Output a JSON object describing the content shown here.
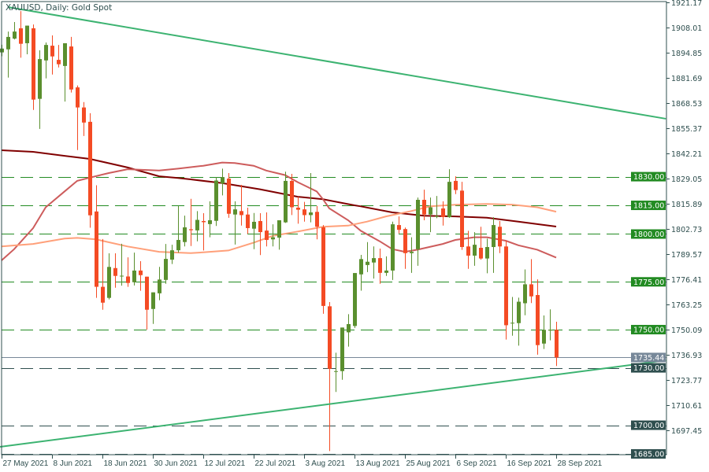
{
  "title": "XAUUSD, Daily:  Gold Spot",
  "colors": {
    "bull": "#5a8f2e",
    "bear": "#f44b24",
    "frame": "#2f4f4f",
    "trendline": "#3cb371",
    "level_major": "#228b22",
    "level_minor": "#2f4f4f",
    "current_price": "#778899"
  },
  "chart_data": {
    "type": "candlestick",
    "symbol": "XAUUSD",
    "timeframe": "Daily",
    "ylim": [
      1685.0,
      1921.17
    ],
    "grid": false,
    "y_tick_labels": [
      "1921.17",
      "1908.01",
      "1894.85",
      "1881.69",
      "1868.53",
      "1855.37",
      "1842.21",
      "1829.05",
      "1815.89",
      "1802.73",
      "1789.57",
      "1776.41",
      "1763.25",
      "1750.09",
      "1736.93",
      "1723.77",
      "1710.61",
      "1697.45"
    ],
    "x_tick_labels": [
      {
        "bar": 0,
        "label": "27 May 2021"
      },
      {
        "bar": 8,
        "label": "8 Jun 2021"
      },
      {
        "bar": 16,
        "label": "18 Jun 2021"
      },
      {
        "bar": 24,
        "label": "30 Jun 2021"
      },
      {
        "bar": 32,
        "label": "12 Jul 2021"
      },
      {
        "bar": 40,
        "label": "22 Jul 2021"
      },
      {
        "bar": 48,
        "label": "3 Aug 2021"
      },
      {
        "bar": 56,
        "label": "13 Aug 2021"
      },
      {
        "bar": 64,
        "label": "25 Aug 2021"
      },
      {
        "bar": 72,
        "label": "6 Sep 2021"
      },
      {
        "bar": 80,
        "label": "16 Sep 2021"
      },
      {
        "bar": 88,
        "label": "28 Sep 2021"
      }
    ],
    "candle_fields": [
      "date",
      "open",
      "high",
      "low",
      "close"
    ],
    "candles": [
      [
        "2021-05-27",
        1895.0,
        1899.0,
        1893.0,
        1897.0
      ],
      [
        "2021-05-28",
        1896.6,
        1905.9,
        1881.8,
        1903.1
      ],
      [
        "2021-05-31",
        1902.2,
        1910.9,
        1901.8,
        1905.9
      ],
      [
        "2021-06-01",
        1907.6,
        1916.6,
        1892.2,
        1899.5
      ],
      [
        "2021-06-02",
        1899.8,
        1909.0,
        1894.0,
        1909.0
      ],
      [
        "2021-06-03",
        1907.6,
        1909.6,
        1864.9,
        1870.3
      ],
      [
        "2021-06-04",
        1870.7,
        1896.1,
        1855.0,
        1891.5
      ],
      [
        "2021-06-07",
        1890.8,
        1900.2,
        1881.4,
        1898.9
      ],
      [
        "2021-06-08",
        1898.5,
        1903.9,
        1883.4,
        1892.9
      ],
      [
        "2021-06-09",
        1891.1,
        1898.9,
        1887.1,
        1888.8
      ],
      [
        "2021-06-10",
        1887.9,
        1899.8,
        1869.3,
        1899.8
      ],
      [
        "2021-06-11",
        1898.1,
        1903.1,
        1874.0,
        1875.6
      ],
      [
        "2021-06-14",
        1876.7,
        1877.7,
        1843.9,
        1866.2
      ],
      [
        "2021-06-15",
        1866.2,
        1869.0,
        1851.3,
        1858.3
      ],
      [
        "2021-06-16",
        1858.7,
        1863.2,
        1803.3,
        1809.8
      ],
      [
        "2021-06-17",
        1811.8,
        1825.5,
        1766.6,
        1772.4
      ],
      [
        "2021-06-18",
        1772.4,
        1797.4,
        1760.4,
        1764.1
      ],
      [
        "2021-06-21",
        1766.6,
        1789.9,
        1765.8,
        1782.8
      ],
      [
        "2021-06-22",
        1782.2,
        1789.9,
        1771.9,
        1778.1
      ],
      [
        "2021-06-23",
        1778.1,
        1794.9,
        1773.0,
        1778.2
      ],
      [
        "2021-06-24",
        1777.8,
        1787.8,
        1772.4,
        1774.4
      ],
      [
        "2021-06-25",
        1774.8,
        1790.3,
        1773.1,
        1780.9
      ],
      [
        "2021-06-28",
        1780.9,
        1785.8,
        1770.3,
        1778.5
      ],
      [
        "2021-06-29",
        1777.7,
        1777.7,
        1750.0,
        1760.4
      ],
      [
        "2021-06-30",
        1760.8,
        1769.5,
        1753.0,
        1769.5
      ],
      [
        "2021-07-01",
        1769.0,
        1782.8,
        1765.4,
        1776.2
      ],
      [
        "2021-07-02",
        1776.0,
        1794.8,
        1774.0,
        1787.0
      ],
      [
        "2021-07-05",
        1786.6,
        1794.4,
        1784.3,
        1791.5
      ],
      [
        "2021-07-06",
        1791.5,
        1814.7,
        1790.3,
        1796.9
      ],
      [
        "2021-07-07",
        1795.8,
        1809.6,
        1793.5,
        1803.5
      ],
      [
        "2021-07-08",
        1802.5,
        1818.4,
        1793.7,
        1802.0
      ],
      [
        "2021-07-09",
        1801.9,
        1812.0,
        1796.2,
        1807.4
      ],
      [
        "2021-07-12",
        1806.8,
        1810.9,
        1791.4,
        1806.2
      ],
      [
        "2021-07-13",
        1805.2,
        1817.1,
        1798.3,
        1807.2
      ],
      [
        "2021-07-14",
        1806.9,
        1829.8,
        1804.2,
        1828.0
      ],
      [
        "2021-07-15",
        1826.4,
        1834.2,
        1820.2,
        1829.8
      ],
      [
        "2021-07-16",
        1829.0,
        1831.9,
        1808.5,
        1810.6
      ],
      [
        "2021-07-19",
        1810.2,
        1817.1,
        1794.5,
        1812.9
      ],
      [
        "2021-07-20",
        1812.0,
        1825.7,
        1804.4,
        1809.9
      ],
      [
        "2021-07-21",
        1810.2,
        1813.8,
        1800.1,
        1803.1
      ],
      [
        "2021-07-22",
        1802.8,
        1811.0,
        1792.1,
        1806.4
      ],
      [
        "2021-07-23",
        1806.8,
        1810.9,
        1789.0,
        1801.0
      ],
      [
        "2021-07-26",
        1801.8,
        1811.3,
        1793.5,
        1796.9
      ],
      [
        "2021-07-27",
        1797.2,
        1805.1,
        1793.5,
        1798.3
      ],
      [
        "2021-07-28",
        1798.1,
        1807.2,
        1791.8,
        1807.2
      ],
      [
        "2021-07-29",
        1806.1,
        1832.6,
        1805.8,
        1827.8
      ],
      [
        "2021-07-30",
        1827.8,
        1831.5,
        1809.9,
        1814.0
      ],
      [
        "2021-08-02",
        1813.8,
        1819.5,
        1805.4,
        1812.7
      ],
      [
        "2021-08-03",
        1812.9,
        1816.8,
        1806.5,
        1809.9
      ],
      [
        "2021-08-04",
        1809.9,
        1831.9,
        1806.1,
        1811.3
      ],
      [
        "2021-08-05",
        1811.6,
        1814.7,
        1797.2,
        1803.8
      ],
      [
        "2021-08-06",
        1803.5,
        1804.7,
        1758.3,
        1762.4
      ],
      [
        "2021-08-09",
        1762.2,
        1764.4,
        1686.5,
        1729.5
      ],
      [
        "2021-08-10",
        1727.9,
        1737.9,
        1717.4,
        1728.3
      ],
      [
        "2021-08-11",
        1728.3,
        1751.1,
        1723.8,
        1751.1
      ],
      [
        "2021-08-12",
        1748.6,
        1758.1,
        1741.1,
        1752.9
      ],
      [
        "2021-08-13",
        1751.9,
        1779.6,
        1750.9,
        1779.6
      ],
      [
        "2021-08-16",
        1778.9,
        1789.1,
        1770.4,
        1786.9
      ],
      [
        "2021-08-17",
        1783.8,
        1795.8,
        1780.1,
        1785.5
      ],
      [
        "2021-08-18",
        1785.1,
        1793.5,
        1776.7,
        1787.4
      ],
      [
        "2021-08-19",
        1787.4,
        1792.4,
        1774.0,
        1779.7
      ],
      [
        "2021-08-20",
        1779.7,
        1788.3,
        1778.1,
        1780.9
      ],
      [
        "2021-08-23",
        1780.9,
        1806.5,
        1776.0,
        1805.1
      ],
      [
        "2021-08-24",
        1804.7,
        1809.2,
        1800.3,
        1802.2
      ],
      [
        "2021-08-25",
        1802.6,
        1803.4,
        1781.8,
        1790.0
      ],
      [
        "2021-08-26",
        1790.0,
        1798.3,
        1779.7,
        1790.7
      ],
      [
        "2021-08-27",
        1792.1,
        1819.1,
        1783.4,
        1817.9
      ],
      [
        "2021-08-30",
        1817.9,
        1823.2,
        1807.2,
        1810.2
      ],
      [
        "2021-08-31",
        1810.2,
        1819.1,
        1801.0,
        1814.0
      ],
      [
        "2021-09-01",
        1809.0,
        1819.9,
        1808.3,
        1809.4
      ],
      [
        "2021-09-02",
        1813.4,
        1817.1,
        1804.4,
        1808.9
      ],
      [
        "2021-09-03",
        1808.8,
        1833.9,
        1808.5,
        1827.3
      ],
      [
        "2021-09-06",
        1827.8,
        1830.2,
        1820.9,
        1823.0
      ],
      [
        "2021-09-07",
        1822.7,
        1827.3,
        1791.7,
        1793.2
      ],
      [
        "2021-09-08",
        1793.5,
        1801.7,
        1781.8,
        1788.7
      ],
      [
        "2021-09-09",
        1788.7,
        1801.0,
        1783.4,
        1794.4
      ],
      [
        "2021-09-10",
        1792.8,
        1803.8,
        1786.6,
        1787.2
      ],
      [
        "2021-09-13",
        1787.2,
        1797.6,
        1779.5,
        1793.2
      ],
      [
        "2021-09-14",
        1793.2,
        1808.8,
        1779.7,
        1804.7
      ],
      [
        "2021-09-15",
        1803.8,
        1806.8,
        1790.0,
        1793.5
      ],
      [
        "2021-09-16",
        1793.5,
        1796.5,
        1744.8,
        1752.3
      ],
      [
        "2021-09-17",
        1753.2,
        1767.1,
        1746.8,
        1753.6
      ],
      [
        "2021-09-20",
        1753.4,
        1766.7,
        1741.6,
        1764.6
      ],
      [
        "2021-09-21",
        1763.8,
        1781.5,
        1757.5,
        1773.7
      ],
      [
        "2021-09-22",
        1773.7,
        1786.9,
        1763.9,
        1767.4
      ],
      [
        "2021-09-23",
        1768.1,
        1776.3,
        1736.9,
        1741.9
      ],
      [
        "2021-09-24",
        1742.7,
        1757.4,
        1739.9,
        1749.9
      ],
      [
        "2021-09-27",
        1749.5,
        1760.6,
        1744.4,
        1750.0
      ],
      [
        "2021-09-28",
        1749.9,
        1754.1,
        1731.0,
        1735.44
      ]
    ],
    "moving_averages": [
      {
        "color": "#800000",
        "points": [
          [
            0,
            1843.8
          ],
          [
            5,
            1843.0
          ],
          [
            10,
            1840.9
          ],
          [
            14,
            1839.3
          ],
          [
            20,
            1834.8
          ],
          [
            25,
            1830.2
          ],
          [
            28,
            1829.3
          ],
          [
            30,
            1828.6
          ],
          [
            35,
            1826.6
          ],
          [
            41,
            1823.4
          ],
          [
            47,
            1819.5
          ],
          [
            51,
            1818.2
          ],
          [
            56,
            1815.0
          ],
          [
            57,
            1814.5
          ],
          [
            62,
            1811.3
          ],
          [
            67,
            1809.6
          ],
          [
            72,
            1809.2
          ],
          [
            77,
            1808.5
          ],
          [
            82,
            1806.5
          ],
          [
            88,
            1803.9
          ]
        ]
      },
      {
        "color": "#cd5c5c",
        "points": [
          [
            0,
            1786.2
          ],
          [
            2,
            1792.1
          ],
          [
            5,
            1803.1
          ],
          [
            7,
            1814.0
          ],
          [
            10,
            1822.3
          ],
          [
            12,
            1827.8
          ],
          [
            14,
            1829.5
          ],
          [
            17,
            1831.9
          ],
          [
            20,
            1833.9
          ],
          [
            25,
            1833.2
          ],
          [
            28,
            1834.2
          ],
          [
            32,
            1835.7
          ],
          [
            35,
            1837.4
          ],
          [
            37,
            1837.1
          ],
          [
            40,
            1835.7
          ],
          [
            42,
            1833.2
          ],
          [
            45,
            1830.8
          ],
          [
            47,
            1827.1
          ],
          [
            50,
            1822.3
          ],
          [
            51,
            1818.2
          ],
          [
            52,
            1813.4
          ],
          [
            55,
            1807.2
          ],
          [
            57,
            1801.7
          ],
          [
            60,
            1796.2
          ],
          [
            62,
            1792.1
          ],
          [
            64,
            1790.7
          ],
          [
            66,
            1791.8
          ],
          [
            70,
            1794.8
          ],
          [
            72,
            1796.9
          ],
          [
            75,
            1798.3
          ],
          [
            77,
            1798.3
          ],
          [
            80,
            1796.5
          ],
          [
            82,
            1794.1
          ],
          [
            85,
            1791.8
          ],
          [
            88,
            1787.7
          ]
        ]
      },
      {
        "color": "#ffa07a",
        "points": [
          [
            0,
            1793.5
          ],
          [
            5,
            1794.8
          ],
          [
            10,
            1797.6
          ],
          [
            12,
            1798.0
          ],
          [
            15,
            1797.2
          ],
          [
            20,
            1793.5
          ],
          [
            25,
            1790.7
          ],
          [
            30,
            1790.0
          ],
          [
            32,
            1790.4
          ],
          [
            36,
            1791.4
          ],
          [
            40,
            1795.5
          ],
          [
            43,
            1799.0
          ],
          [
            47,
            1801.3
          ],
          [
            51,
            1803.8
          ],
          [
            55,
            1804.4
          ],
          [
            58,
            1806.5
          ],
          [
            61,
            1809.2
          ],
          [
            65,
            1812.0
          ],
          [
            68,
            1814.5
          ],
          [
            72,
            1815.3
          ],
          [
            77,
            1815.7
          ],
          [
            81,
            1815.4
          ],
          [
            85,
            1814.0
          ],
          [
            88,
            1811.7
          ]
        ]
      }
    ],
    "trendlines": [
      {
        "name": "upper",
        "from": {
          "bar": 1,
          "price": 1918.7
        },
        "to": {
          "bar": 105.4,
          "price": 1860.3
        }
      },
      {
        "name": "lower",
        "from": {
          "bar": -0.25,
          "price": 1688.7
        },
        "to": {
          "bar": 105.4,
          "price": 1733.9
        }
      }
    ],
    "levels": [
      {
        "price": 1830.0,
        "label": "1830.00",
        "style": "major"
      },
      {
        "price": 1815.0,
        "label": "1815.00",
        "style": "major"
      },
      {
        "price": 1800.0,
        "label": "1800.00",
        "style": "major"
      },
      {
        "price": 1775.0,
        "label": "1775.00",
        "style": "major"
      },
      {
        "price": 1750.0,
        "label": "1750.00",
        "style": "major"
      },
      {
        "price": 1730.0,
        "label": "1730.00",
        "style": "minor"
      },
      {
        "price": 1700.0,
        "label": "1700.00",
        "style": "minor"
      },
      {
        "price": 1685.0,
        "label": "1685.00",
        "style": "minor"
      }
    ],
    "current_price": {
      "price": 1735.44,
      "label": "1735.44"
    }
  }
}
